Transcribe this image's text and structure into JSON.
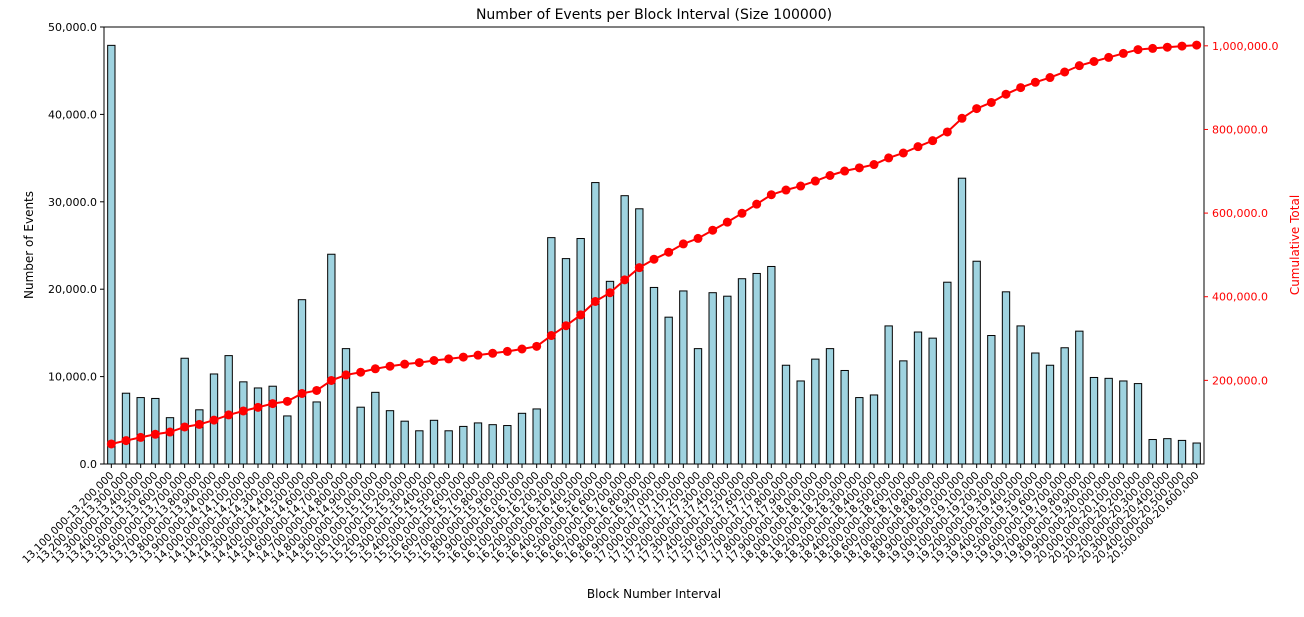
{
  "chart_data": {
    "type": "bar",
    "title": "Number of Events per Block Interval (Size 100000)",
    "xlabel": "Block Number Interval",
    "ylabel": "Number of Events",
    "y2label": "Cumulative Total",
    "ylim": [
      0,
      50000
    ],
    "y2lim": [
      0,
      1045000
    ],
    "yticks": [
      "0.0",
      "10,000.0",
      "20,000.0",
      "30,000.0",
      "40,000.0",
      "50,000.0"
    ],
    "y2ticks": [
      "200,000.0",
      "400,000.0",
      "600,000.0",
      "800,000.0",
      "1,000,000.0"
    ],
    "grid": false,
    "colors": {
      "bar": "#9fd3e0",
      "bar_edge": "#000000",
      "cumulative": "#ff0000"
    },
    "categories": [
      "13,100,000-13,200,000",
      "13,200,000-13,300,000",
      "13,300,000-13,400,000",
      "13,400,000-13,500,000",
      "13,500,000-13,600,000",
      "13,600,000-13,700,000",
      "13,700,000-13,800,000",
      "13,800,000-13,900,000",
      "13,900,000-14,000,000",
      "14,000,000-14,100,000",
      "14,100,000-14,200,000",
      "14,200,000-14,300,000",
      "14,300,000-14,400,000",
      "14,400,000-14,500,000",
      "14,500,000-14,600,000",
      "14,600,000-14,700,000",
      "14,700,000-14,800,000",
      "14,800,000-14,900,000",
      "14,900,000-15,000,000",
      "15,000,000-15,100,000",
      "15,100,000-15,200,000",
      "15,200,000-15,300,000",
      "15,300,000-15,400,000",
      "15,400,000-15,500,000",
      "15,500,000-15,600,000",
      "15,600,000-15,700,000",
      "15,700,000-15,800,000",
      "15,800,000-15,900,000",
      "15,900,000-16,000,000",
      "16,000,000-16,100,000",
      "16,100,000-16,200,000",
      "16,200,000-16,300,000",
      "16,300,000-16,400,000",
      "16,400,000-16,500,000",
      "16,500,000-16,600,000",
      "16,600,000-16,700,000",
      "16,700,000-16,800,000",
      "16,800,000-16,900,000",
      "16,900,000-17,000,000",
      "17,000,000-17,100,000",
      "17,100,000-17,200,000",
      "17,200,000-17,300,000",
      "17,300,000-17,400,000",
      "17,400,000-17,500,000",
      "17,500,000-17,600,000",
      "17,600,000-17,700,000",
      "17,700,000-17,800,000",
      "17,800,000-17,900,000",
      "17,900,000-18,000,000",
      "18,000,000-18,100,000",
      "18,100,000-18,200,000",
      "18,200,000-18,300,000",
      "18,300,000-18,400,000",
      "18,400,000-18,500,000",
      "18,500,000-18,600,000",
      "18,600,000-18,700,000",
      "18,700,000-18,800,000",
      "18,800,000-18,900,000",
      "18,900,000-19,000,000",
      "19,000,000-19,100,000",
      "19,100,000-19,200,000",
      "19,200,000-19,300,000",
      "19,300,000-19,400,000",
      "19,400,000-19,500,000",
      "19,500,000-19,600,000",
      "19,600,000-19,700,000",
      "19,700,000-19,800,000",
      "19,800,000-19,900,000",
      "19,900,000-20,000,000",
      "20,000,000-20,100,000",
      "20,100,000-20,200,000",
      "20,200,000-20,300,000",
      "20,300,000-20,400,000",
      "20,400,000-20,500,000",
      "20,500,000-20,600,000"
    ],
    "series": [
      {
        "type": "bar",
        "axis": "left",
        "values": [
          47900,
          8100,
          7600,
          7500,
          5300,
          12100,
          6200,
          10300,
          12400,
          9400,
          8700,
          8900,
          5500,
          18800,
          7100,
          24000,
          13200,
          6500,
          8200,
          6100,
          4900,
          3800,
          5000,
          3800,
          4300,
          4700,
          4500,
          4400,
          5800,
          6300,
          25900,
          23500,
          25800,
          32200,
          20900,
          30700,
          29200,
          20200,
          16800,
          19800,
          13200,
          19600,
          19200,
          21200,
          21800,
          22600,
          11300,
          9500,
          12000,
          13200,
          10700,
          7600,
          7900,
          15800,
          11800,
          15100,
          14400,
          20800,
          32700,
          23200,
          14700,
          19700,
          15800,
          12700,
          11300,
          13300,
          15200,
          9900,
          9800,
          9500,
          9200,
          2800,
          2900,
          2700,
          2400
        ]
      },
      {
        "type": "line",
        "axis": "right",
        "values": [
          47900,
          56000,
          63600,
          71100,
          76400,
          88500,
          94700,
          105000,
          117400,
          126800,
          135500,
          144400,
          149900,
          168700,
          175800,
          199800,
          213000,
          219500,
          227700,
          233800,
          238700,
          242500,
          247500,
          251300,
          255600,
          260300,
          264800,
          269200,
          275000,
          281300,
          307200,
          330700,
          356500,
          388700,
          409600,
          440300,
          469500,
          489700,
          506500,
          526300,
          539500,
          559100,
          578300,
          599500,
          621300,
          643900,
          655200,
          664700,
          676700,
          689900,
          700600,
          708200,
          716100,
          731900,
          743700,
          758800,
          773200,
          794000,
          826700,
          849900,
          864600,
          884300,
          900100,
          912800,
          924100,
          937400,
          952600,
          962500,
          972300,
          981800,
          991000,
          993800,
          996700,
          999400,
          1001800
        ]
      }
    ]
  }
}
